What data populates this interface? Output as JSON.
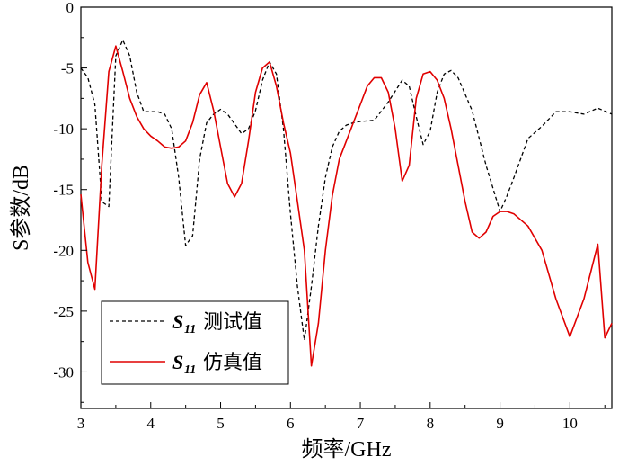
{
  "chart_data": {
    "type": "line",
    "xlabel": "频率/GHz",
    "ylabel": "S参数/dB",
    "xlim": [
      3,
      10.6
    ],
    "ylim": [
      -33,
      0
    ],
    "x_ticks": [
      3,
      4,
      5,
      6,
      7,
      8,
      9,
      10
    ],
    "x_tick_labels": [
      "3",
      "4",
      "5",
      "6",
      "7",
      "8",
      "9",
      "10"
    ],
    "y_ticks": [
      0,
      -5,
      -10,
      -15,
      -20,
      -25,
      -30
    ],
    "y_tick_labels": [
      "0",
      "-5",
      "-10",
      "-15",
      "-20",
      "-25",
      "-30"
    ],
    "grid": false,
    "legend_position": "bottom-left",
    "series": [
      {
        "name": "测试值",
        "symbol": "S",
        "subscript": "11",
        "color": "#000000",
        "dash": "dashed",
        "x": [
          3.0,
          3.1,
          3.2,
          3.3,
          3.4,
          3.5,
          3.6,
          3.7,
          3.8,
          3.9,
          4.0,
          4.1,
          4.2,
          4.3,
          4.4,
          4.5,
          4.6,
          4.7,
          4.8,
          4.9,
          5.0,
          5.1,
          5.2,
          5.3,
          5.4,
          5.5,
          5.6,
          5.7,
          5.8,
          5.9,
          6.0,
          6.1,
          6.2,
          6.3,
          6.4,
          6.5,
          6.6,
          6.7,
          6.8,
          6.9,
          7.0,
          7.2,
          7.4,
          7.6,
          7.7,
          7.8,
          7.9,
          8.0,
          8.1,
          8.2,
          8.3,
          8.4,
          8.6,
          8.8,
          9.0,
          9.1,
          9.2,
          9.4,
          9.6,
          9.8,
          10.0,
          10.2,
          10.4,
          10.6
        ],
        "y": [
          -5.0,
          -5.8,
          -8.0,
          -16.0,
          -16.4,
          -4.0,
          -2.7,
          -4.0,
          -7.0,
          -8.6,
          -8.6,
          -8.6,
          -8.8,
          -10.0,
          -14.0,
          -19.6,
          -18.8,
          -12.5,
          -9.5,
          -8.8,
          -8.4,
          -8.8,
          -9.6,
          -10.4,
          -10.0,
          -8.5,
          -6.0,
          -4.5,
          -5.5,
          -10.0,
          -17.0,
          -23.0,
          -27.4,
          -23.0,
          -18.0,
          -14.0,
          -11.5,
          -10.2,
          -9.7,
          -9.5,
          -9.4,
          -9.3,
          -7.8,
          -6.0,
          -6.5,
          -9.0,
          -11.3,
          -10.2,
          -7.0,
          -5.5,
          -5.2,
          -5.8,
          -8.5,
          -13.0,
          -16.8,
          -15.5,
          -14.0,
          -10.8,
          -9.8,
          -8.6,
          -8.6,
          -8.8,
          -8.3,
          -8.8
        ]
      },
      {
        "name": "仿真值",
        "symbol": "S",
        "subscript": "11",
        "color": "#e00000",
        "dash": "solid",
        "x": [
          3.0,
          3.1,
          3.2,
          3.3,
          3.4,
          3.5,
          3.6,
          3.7,
          3.8,
          3.9,
          4.0,
          4.1,
          4.2,
          4.3,
          4.4,
          4.5,
          4.6,
          4.7,
          4.8,
          4.9,
          5.0,
          5.1,
          5.2,
          5.3,
          5.4,
          5.5,
          5.6,
          5.7,
          5.8,
          5.9,
          6.0,
          6.1,
          6.2,
          6.3,
          6.4,
          6.5,
          6.6,
          6.7,
          6.8,
          6.9,
          7.0,
          7.1,
          7.2,
          7.3,
          7.4,
          7.5,
          7.6,
          7.7,
          7.8,
          7.9,
          8.0,
          8.1,
          8.2,
          8.3,
          8.4,
          8.5,
          8.6,
          8.7,
          8.8,
          8.9,
          9.0,
          9.1,
          9.2,
          9.4,
          9.6,
          9.8,
          10.0,
          10.2,
          10.4,
          10.5,
          10.6
        ],
        "y": [
          -15.4,
          -21.0,
          -23.2,
          -13.0,
          -5.3,
          -3.2,
          -5.3,
          -7.5,
          -9.0,
          -10.0,
          -10.6,
          -11.0,
          -11.5,
          -11.6,
          -11.5,
          -11.0,
          -9.5,
          -7.2,
          -6.2,
          -8.5,
          -11.5,
          -14.5,
          -15.6,
          -14.5,
          -11.0,
          -7.0,
          -5.0,
          -4.5,
          -6.5,
          -9.5,
          -12.0,
          -16.0,
          -20.0,
          -29.5,
          -26.0,
          -20.0,
          -15.5,
          -12.5,
          -11.0,
          -9.5,
          -8.0,
          -6.5,
          -5.8,
          -5.8,
          -7.0,
          -10.0,
          -14.3,
          -13.0,
          -7.5,
          -5.5,
          -5.3,
          -6.0,
          -7.5,
          -10.0,
          -13.0,
          -16.0,
          -18.5,
          -19.0,
          -18.5,
          -17.2,
          -16.8,
          -16.8,
          -17.0,
          -18.0,
          -20.0,
          -24.0,
          -27.1,
          -24.0,
          -19.5,
          -27.2,
          -26.0
        ],
        "note_unused": ""
      }
    ]
  }
}
